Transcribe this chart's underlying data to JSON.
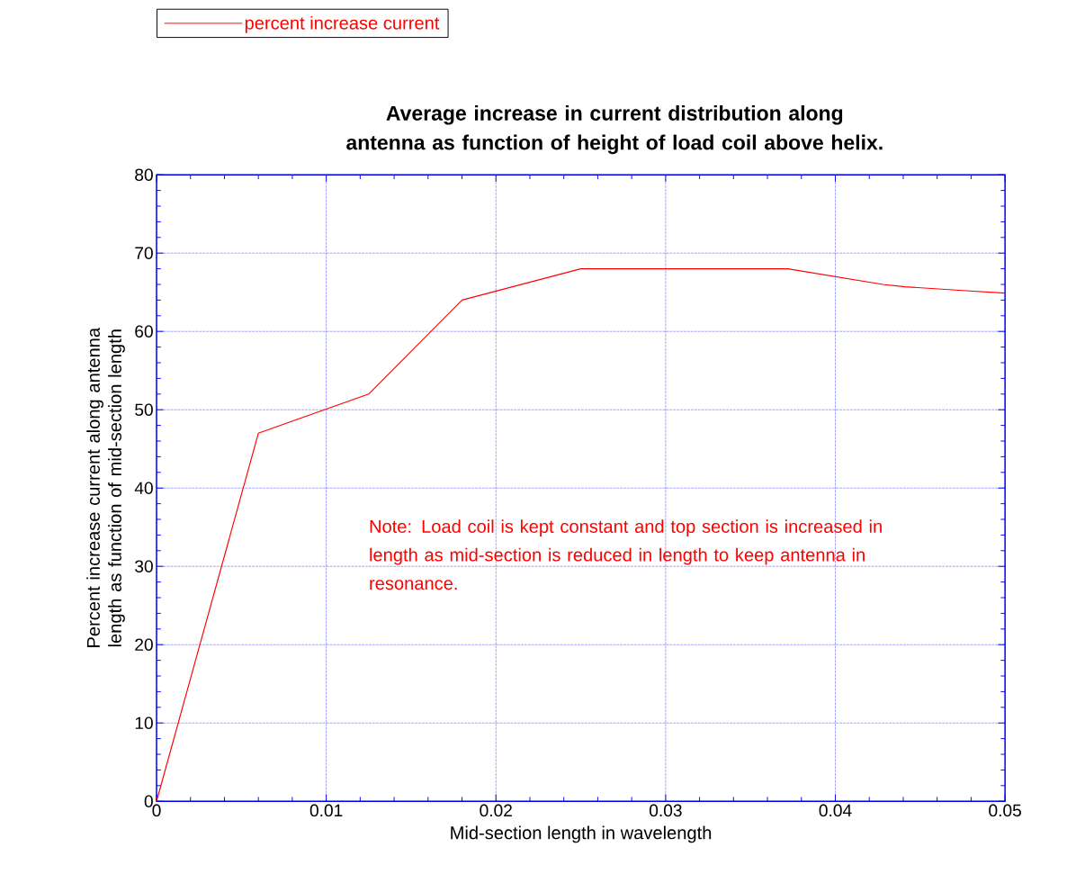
{
  "chart_data": {
    "type": "line",
    "title": "Average increase in current distribution along antenna as function of height of load coil above helix.",
    "xlabel": "Mid-section length in wavelength",
    "ylabel": "Percent  increase current along antenna length as function of  mid-section length",
    "annotations": [
      "Note: Load coil is kept constant and top section is increased  in length as mid-section is  reduced in length to keep antenna in resonance."
    ],
    "x": [
      0,
      0.006,
      0.0125,
      0.018,
      0.025,
      0.0372,
      0.0428,
      0.0441,
      0.0477,
      0.05
    ],
    "series": [
      {
        "name": "percent  increase current",
        "color": "#ff0000",
        "values": [
          0,
          47,
          52,
          64,
          68,
          68,
          66,
          65.7,
          65.2,
          64.9
        ]
      }
    ],
    "xlim": [
      0,
      0.05
    ],
    "ylim": [
      0,
      80
    ],
    "xticks": [
      0,
      0.01,
      0.02,
      0.03,
      0.04,
      0.05
    ],
    "yticks": [
      0,
      10,
      20,
      30,
      40,
      50,
      60,
      70,
      80
    ],
    "grid": true,
    "legend": "top left",
    "marker": "none",
    "line_style": "solid"
  }
}
